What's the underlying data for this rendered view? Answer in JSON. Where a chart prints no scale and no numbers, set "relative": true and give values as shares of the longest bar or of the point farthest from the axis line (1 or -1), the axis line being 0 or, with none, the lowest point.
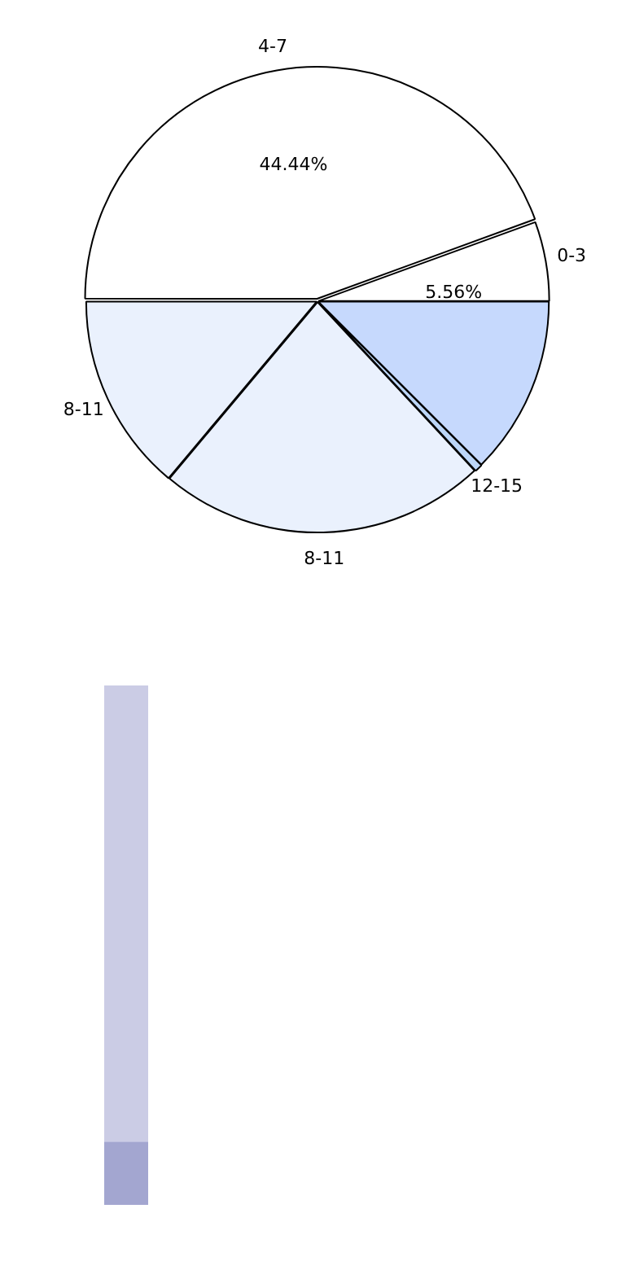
{
  "chart_data": [
    {
      "type": "pie",
      "categories": [
        "4-7",
        "0-3",
        null,
        "12-15",
        "8-11",
        "8-11"
      ],
      "values": [
        44.44,
        5.56,
        12.5,
        0.56,
        23.05,
        13.89
      ],
      "colors": [
        "#ffffff",
        "#ffffff",
        "#c6d9fd",
        "#bcd6f7",
        "#eaf1fd",
        "#eaf1fd"
      ],
      "value_labels": [
        "44.44%",
        "5.56%",
        null,
        null,
        null,
        null
      ],
      "legend": false
    },
    {
      "type": "bar",
      "stacked": true,
      "relative": true,
      "categories": [
        null
      ],
      "legend": false,
      "series": [
        {
          "color": "#a3a6d0",
          "values": [
            0.122
          ]
        },
        {
          "color": "#cbcce5",
          "values": [
            0.878
          ]
        }
      ]
    }
  ]
}
